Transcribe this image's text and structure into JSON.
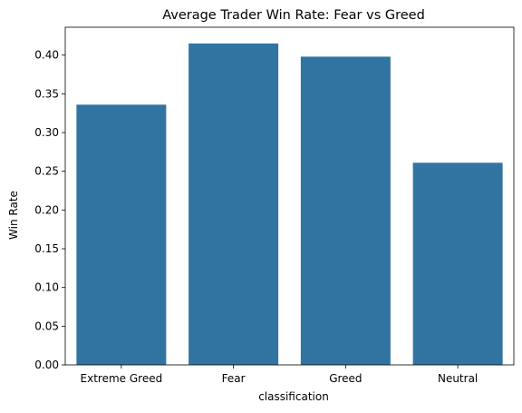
{
  "chart_data": {
    "type": "bar",
    "title": "Average Trader Win Rate: Fear vs Greed",
    "xlabel": "classification",
    "ylabel": "Win Rate",
    "categories": [
      "Extreme Greed",
      "Fear",
      "Greed",
      "Neutral"
    ],
    "values": [
      0.336,
      0.415,
      0.398,
      0.261
    ],
    "ylim": [
      0,
      0.436
    ],
    "yticks": [
      0.0,
      0.05,
      0.1,
      0.15,
      0.2,
      0.25,
      0.3,
      0.35,
      0.4
    ],
    "ytick_labels": [
      "0.00",
      "0.05",
      "0.10",
      "0.15",
      "0.20",
      "0.25",
      "0.30",
      "0.35",
      "0.40"
    ],
    "bar_color": "#3274a1",
    "grid": false,
    "legend": "none"
  }
}
